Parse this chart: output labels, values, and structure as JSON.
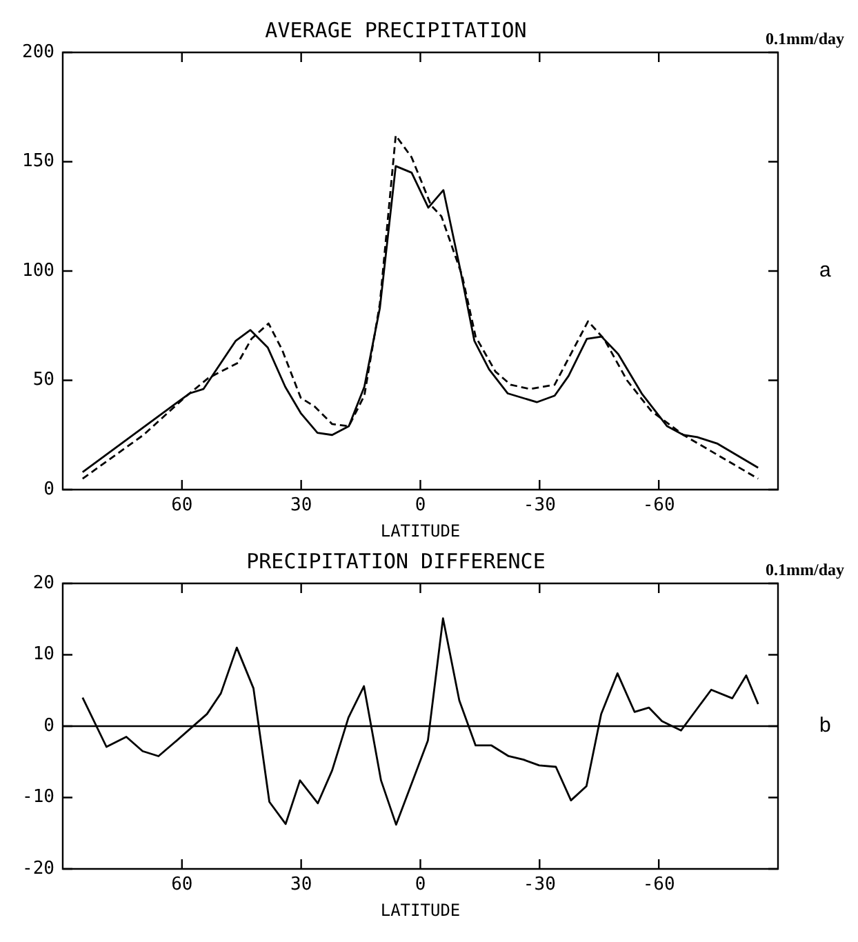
{
  "chart_data": [
    {
      "type": "line",
      "title": "AVERAGE PRECIPITATION",
      "xlabel": "LATITUDE",
      "annotations": [
        "0.1mm/day",
        "a"
      ],
      "marker": "none",
      "xlim": [
        90,
        -90
      ],
      "xticks": [
        60,
        30,
        0,
        -30,
        -60
      ],
      "ylim": [
        0,
        200
      ],
      "yticks": [
        0,
        50,
        100,
        150,
        200
      ],
      "series": [
        {
          "color": "#000000",
          "line_style": "solid",
          "x": [
            85,
            58.1,
            54.6,
            46.5,
            42.8,
            38.4,
            34.0,
            30.1,
            25.9,
            22.2,
            18.0,
            14.1,
            10.2,
            6.2,
            2.2,
            -2.0,
            -5.8,
            -10.0,
            -13.6,
            -17.3,
            -22.0,
            -29.3,
            -33.8,
            -37.3,
            -41.9,
            -45.6,
            -49.8,
            -55.7,
            -62.1,
            -66.2,
            -69.7,
            -74.8,
            -85
          ],
          "values": [
            8,
            44,
            46,
            68,
            73,
            65,
            47,
            35,
            26,
            25,
            29,
            47,
            83,
            148,
            145,
            129,
            137,
            101,
            68,
            55,
            44,
            40,
            43,
            52,
            69,
            70,
            62,
            44,
            29,
            25,
            24,
            21,
            10
          ]
        },
        {
          "color": "#000000",
          "line_style": "dashed",
          "x": [
            85,
            69.7,
            59.4,
            53.4,
            45.9,
            42.5,
            38.2,
            34.8,
            30.1,
            26.6,
            22.2,
            18.0,
            14.1,
            10.2,
            6.2,
            2.2,
            -2.7,
            -5.3,
            -10.5,
            -13.9,
            -18.9,
            -22.7,
            -27.6,
            -33.8,
            -42.2,
            -46.2,
            -52.0,
            -58.1,
            -66.2,
            -85
          ],
          "values": [
            5,
            25,
            42,
            51,
            58,
            69,
            76,
            64,
            42,
            38,
            30,
            29,
            43,
            85,
            162,
            152,
            130,
            125,
            98,
            70,
            54,
            48,
            46,
            48,
            77,
            69,
            50,
            36,
            25,
            5
          ]
        }
      ]
    },
    {
      "type": "line",
      "title": "PRECIPITATION DIFFERENCE",
      "xlabel": "LATITUDE",
      "annotations": [
        "0.1mm/day",
        "b"
      ],
      "marker": "none",
      "xlim": [
        90,
        -90
      ],
      "xticks": [
        60,
        30,
        0,
        -30,
        -60
      ],
      "ylim": [
        -20,
        20
      ],
      "yticks": [
        -20,
        -10,
        0,
        10,
        20
      ],
      "ref_lines": [
        {
          "axis": "y",
          "value": 0
        }
      ],
      "series": [
        {
          "color": "#000000",
          "line_style": "solid",
          "x": [
            85,
            79,
            74,
            69.9,
            65.9,
            61.9,
            53.7,
            50.2,
            46.2,
            42.0,
            38.0,
            33.9,
            30.3,
            25.8,
            22.2,
            18.1,
            14.2,
            9.9,
            6.1,
            -1.9,
            -5.7,
            -9.8,
            -13.9,
            -17.9,
            -22.2,
            -26,
            -29.9,
            -34.1,
            -37.9,
            -41.8,
            -45.5,
            -49.6,
            -53.9,
            -57.5,
            -60.8,
            -65.6,
            -73.2,
            -78.5,
            -82,
            -85
          ],
          "values": [
            4,
            -2.9,
            -1.5,
            -3.5,
            -4.2,
            -2.3,
            1.7,
            4.6,
            11,
            5.3,
            -10.6,
            -13.7,
            -7.6,
            -10.8,
            -6.2,
            1.2,
            5.6,
            -7.6,
            -13.8,
            -2,
            15.1,
            3.6,
            -2.7,
            -2.7,
            -4.2,
            -4.7,
            -5.5,
            -5.7,
            -10.4,
            -8.4,
            1.7,
            7.4,
            2,
            2.6,
            0.7,
            -0.6,
            5.1,
            3.9,
            7.1,
            3.1
          ]
        }
      ]
    }
  ]
}
